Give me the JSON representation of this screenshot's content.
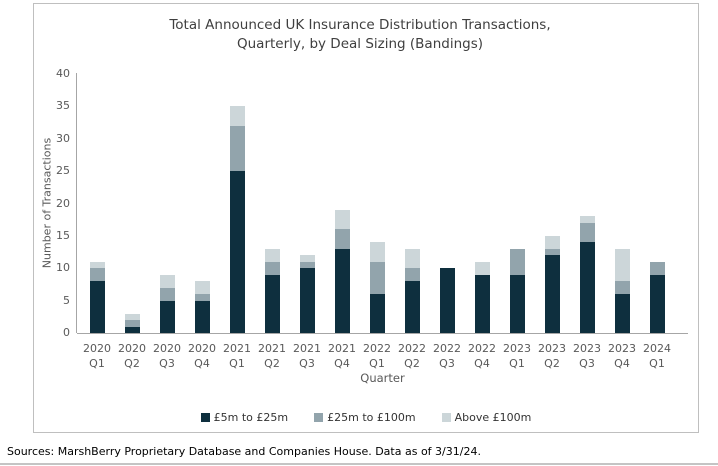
{
  "title_lines": [
    "Total Announced UK Insurance Distribution Transactions,",
    "Quarterly, by Deal Sizing (Bandings)"
  ],
  "footer": "Sources: MarshBerry Proprietary Database and Companies House. Data as of 3/31/24.",
  "colors": {
    "band_5m_25m": "#0e2f3e",
    "band_25m_100m": "#92a4ac",
    "band_above_100m": "#ccd6d9",
    "axis_line": "#a6a6a6",
    "tick_text": "#595959",
    "title_text": "#3f3f3f",
    "chart_border": "#bfbfbf"
  },
  "chart_data": {
    "type": "bar",
    "stacked": true,
    "title": "Total Announced UK Insurance Distribution Transactions, Quarterly, by Deal Sizing (Bandings)",
    "xlabel": "Quarter",
    "ylabel": "Number of Transactions",
    "ylim": [
      0,
      40
    ],
    "ytick_step": 5,
    "grid": false,
    "legend_position": "bottom",
    "categories": [
      "2020 Q1",
      "2020 Q2",
      "2020 Q3",
      "2020 Q4",
      "2021 Q1",
      "2021 Q2",
      "2021 Q3",
      "2021 Q4",
      "2022 Q1",
      "2022 Q2",
      "2022 Q3",
      "2022 Q4",
      "2023 Q1",
      "2023 Q2",
      "2023 Q3",
      "2023 Q4",
      "2024 Q1"
    ],
    "series": [
      {
        "name": "£5m to £25m",
        "color": "#0e2f3e",
        "values": [
          8,
          1,
          5,
          5,
          25,
          9,
          10,
          13,
          6,
          8,
          10,
          9,
          9,
          12,
          14,
          6,
          9
        ]
      },
      {
        "name": "£25m to £100m",
        "color": "#92a4ac",
        "values": [
          2,
          1,
          2,
          1,
          7,
          2,
          1,
          3,
          5,
          2,
          0,
          0,
          4,
          1,
          3,
          2,
          2
        ]
      },
      {
        "name": "Above £100m",
        "color": "#ccd6d9",
        "values": [
          1,
          1,
          2,
          2,
          3,
          2,
          1,
          3,
          3,
          3,
          0,
          2,
          0,
          2,
          1,
          5,
          0
        ]
      }
    ],
    "totals": [
      11,
      3,
      9,
      8,
      35,
      13,
      12,
      19,
      14,
      13,
      10,
      11,
      13,
      15,
      18,
      13,
      11
    ]
  }
}
